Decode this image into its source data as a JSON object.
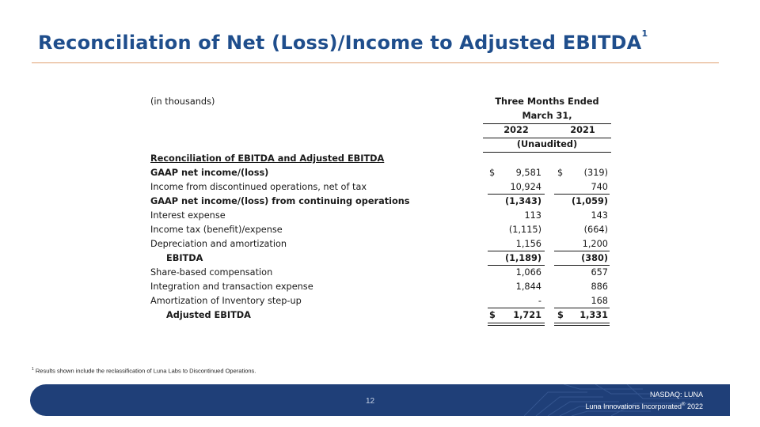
{
  "title": "Reconciliation of Net (Loss)/Income to Adjusted EBITDA",
  "title_sup": "1",
  "table": {
    "units_label": "(in thousands)",
    "period_header_1": "Three Months Ended",
    "period_header_2": "March 31,",
    "col1_year": "2022",
    "col2_year": "2021",
    "audit_label": "(Unaudited)",
    "section_title": "Reconciliation of EBITDA and Adjusted EBITDA",
    "currency_symbol": "$",
    "rows": [
      {
        "label": "GAAP net income/(loss)",
        "v1": "9,581",
        "v2": "(319)"
      },
      {
        "label": "Income from discontinued operations, net of tax",
        "v1": "10,924",
        "v2": "740"
      },
      {
        "label": "GAAP net income/(loss) from continuing operations",
        "v1": "(1,343)",
        "v2": "(1,059)"
      },
      {
        "label": "Interest expense",
        "v1": "113",
        "v2": "143"
      },
      {
        "label": "Income tax (benefit)/expense",
        "v1": "(1,115)",
        "v2": "(664)"
      },
      {
        "label": "Depreciation and amortization",
        "v1": "1,156",
        "v2": "1,200"
      },
      {
        "label": "EBITDA",
        "v1": "(1,189)",
        "v2": "(380)"
      },
      {
        "label": "Share-based compensation",
        "v1": "1,066",
        "v2": "657"
      },
      {
        "label": "Integration and transaction expense",
        "v1": "1,844",
        "v2": "886"
      },
      {
        "label": "Amortization of Inventory step-up",
        "v1": "-",
        "v2": "168"
      },
      {
        "label": "Adjusted EBITDA",
        "v1": "1,721",
        "v2": "1,331"
      }
    ]
  },
  "footnote_sup": "1",
  "footnote": "Results shown include the reclassification of Luna Labs to Discontinued Operations.",
  "footer": {
    "page_number": "12",
    "nasdaq": "NASDAQ: LUNA",
    "company": "Luna Innovations Incorporated",
    "company_mark": "®",
    "year": "2022"
  },
  "colors": {
    "title": "#1f4e8c",
    "rule": "#e0a070",
    "footer_bar": "#1f3f78"
  }
}
